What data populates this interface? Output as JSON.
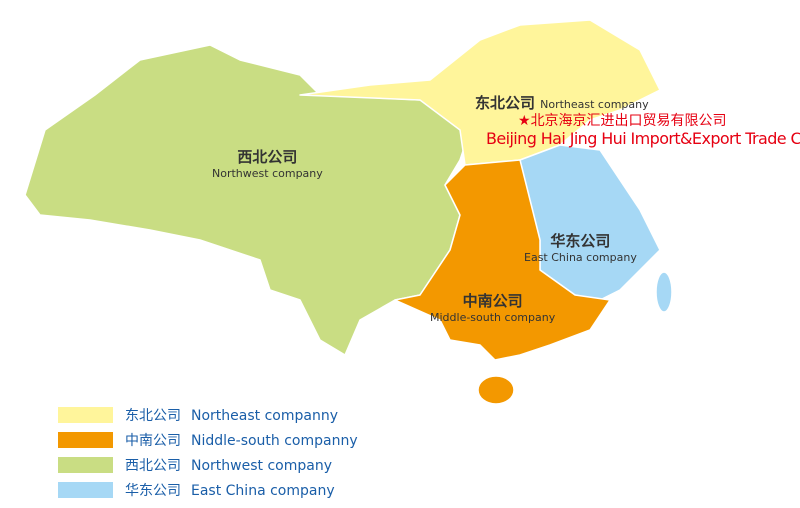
{
  "colors": {
    "northeast": "#fff59b",
    "middle_south": "#f39800",
    "northwest": "#c9dd83",
    "east_china": "#a6d8f5",
    "company_text": "#e60012",
    "legend_text": "#1a5ea8"
  },
  "regions": {
    "northeast": {
      "cn": "东北公司",
      "en": "Northeast company"
    },
    "northwest": {
      "cn": "西北公司",
      "en": "Northwest company"
    },
    "east_china": {
      "cn": "华东公司",
      "en": "East China company"
    },
    "middle_south": {
      "cn": "中南公司",
      "en": "Middle-south company"
    }
  },
  "company": {
    "marker_icon": "star-icon",
    "star": "★",
    "cn": "北京海京汇进出口贸易有限公司",
    "en": "Beijing Hai Jing Hui Import&Export Trade Co.,Ltd"
  },
  "legend": [
    {
      "key": "northeast",
      "cn": "东北公司",
      "en": "Northeast companny"
    },
    {
      "key": "middle_south",
      "cn": "中南公司",
      "en": "Niddle-south companny"
    },
    {
      "key": "northwest",
      "cn": "西北公司",
      "en": "Northwest company"
    },
    {
      "key": "east_china",
      "cn": "华东公司",
      "en": "East China company"
    }
  ]
}
